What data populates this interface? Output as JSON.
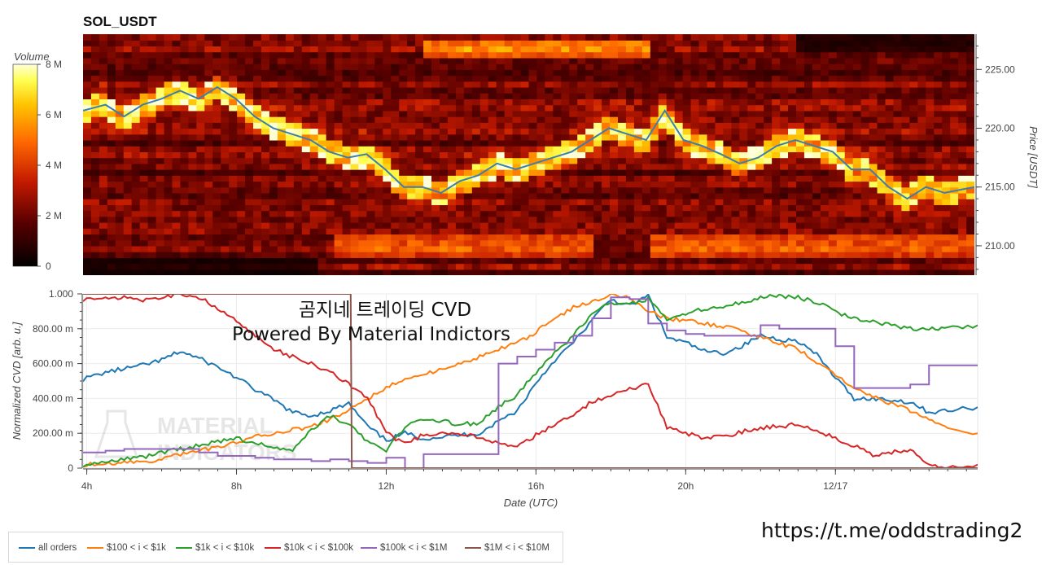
{
  "colors": {
    "all_orders": "#1f77b4",
    "s100_1k": "#ff7f0e",
    "s1k_10k": "#2ca02c",
    "s10k_100k": "#d62728",
    "s100k_1m": "#9467bd",
    "s1m_10m": "#8c564b",
    "price_line": "#3a7fb0"
  },
  "watermark": {
    "line1": "곰지네 트레이딩 CVD",
    "line2": "Powered By Material Indictors",
    "logo_line1": "MATERIAL",
    "logo_line2": "INDICATORS",
    "url": "https://t.me/oddstrading2"
  },
  "chart_data": [
    {
      "type": "heatmap",
      "title": "SOL_USDT",
      "colorbar": {
        "title": "Volume",
        "ticks": [
          "0",
          "2 M",
          "4 M",
          "6 M",
          "8 M"
        ],
        "range": [
          0,
          8000000
        ]
      },
      "ylabel": "Price [USDT]",
      "ylim": [
        207.5,
        228.0
      ],
      "yticks": [
        "210.00",
        "215.00",
        "220.00",
        "225.00"
      ],
      "xlim": [
        3.9,
        27.8
      ],
      "price_series": {
        "x": [
          3.9,
          4.5,
          5.0,
          5.5,
          6.0,
          6.5,
          7.0,
          7.5,
          8.0,
          8.5,
          9.0,
          9.5,
          10.0,
          10.5,
          11.0,
          11.5,
          12.0,
          12.5,
          13.0,
          13.5,
          14.0,
          14.5,
          15.0,
          15.5,
          16.0,
          16.5,
          17.0,
          17.5,
          18.0,
          18.5,
          19.0,
          19.5,
          20.0,
          20.5,
          21.0,
          21.5,
          22.0,
          22.5,
          23.0,
          23.5,
          24.0,
          24.5,
          25.0,
          25.5,
          26.0,
          26.5,
          27.0,
          27.8
        ],
        "y": [
          221.5,
          222.0,
          221.0,
          222.0,
          222.5,
          223.2,
          222.5,
          223.5,
          222.5,
          221.0,
          220.0,
          219.5,
          219.0,
          218.0,
          217.5,
          217.8,
          216.5,
          215.0,
          215.0,
          214.5,
          215.5,
          216.0,
          217.0,
          216.5,
          217.0,
          217.5,
          218.0,
          219.0,
          220.0,
          219.5,
          219.0,
          221.5,
          219.0,
          218.5,
          217.8,
          217.0,
          217.5,
          218.5,
          219.0,
          218.5,
          218.0,
          216.5,
          216.5,
          215.0,
          214.0,
          215.0,
          214.5,
          215.0
        ]
      }
    },
    {
      "type": "line",
      "xlabel": "Date (UTC)",
      "ylabel": "Normalized CVD [arb. u.]",
      "xlim": [
        3.9,
        27.8
      ],
      "ylim": [
        0,
        1.0
      ],
      "yticks": [
        "0",
        "200.00 m",
        "400.00 m",
        "600.00 m",
        "800.00 m",
        "1.000"
      ],
      "x_tick_values": [
        4,
        8,
        12,
        16,
        20,
        24
      ],
      "x_tick_labels": [
        "4h",
        "8h",
        "12h",
        "16h",
        "20h",
        "12/17"
      ],
      "x": [
        3.9,
        4.5,
        5.0,
        5.5,
        6.0,
        6.5,
        7.0,
        7.5,
        8.0,
        8.5,
        9.0,
        9.5,
        10.0,
        10.5,
        11.0,
        11.5,
        12.0,
        12.5,
        13.0,
        13.5,
        14.0,
        14.5,
        15.0,
        15.5,
        16.0,
        16.5,
        17.0,
        17.5,
        18.0,
        18.5,
        19.0,
        19.5,
        20.0,
        20.5,
        21.0,
        21.5,
        22.0,
        22.5,
        23.0,
        23.5,
        24.0,
        24.5,
        25.0,
        25.5,
        26.0,
        26.5,
        27.0,
        27.8
      ],
      "series": [
        {
          "name": "all orders",
          "values": [
            0.51,
            0.55,
            0.57,
            0.59,
            0.62,
            0.67,
            0.63,
            0.58,
            0.52,
            0.45,
            0.39,
            0.32,
            0.3,
            0.33,
            0.37,
            0.24,
            0.16,
            0.2,
            0.17,
            0.18,
            0.19,
            0.2,
            0.27,
            0.33,
            0.49,
            0.62,
            0.72,
            0.85,
            0.97,
            0.93,
            0.99,
            0.75,
            0.72,
            0.67,
            0.66,
            0.7,
            0.76,
            0.74,
            0.73,
            0.65,
            0.52,
            0.4,
            0.4,
            0.39,
            0.38,
            0.32,
            0.33,
            0.35
          ]
        },
        {
          "name": "$100 < i < $1k",
          "values": [
            0.02,
            0.02,
            0.03,
            0.04,
            0.05,
            0.08,
            0.1,
            0.12,
            0.15,
            0.18,
            0.2,
            0.22,
            0.24,
            0.28,
            0.34,
            0.4,
            0.46,
            0.51,
            0.54,
            0.57,
            0.6,
            0.64,
            0.68,
            0.72,
            0.78,
            0.86,
            0.92,
            0.96,
            0.99,
            0.98,
            0.9,
            0.86,
            0.85,
            0.83,
            0.81,
            0.79,
            0.75,
            0.72,
            0.68,
            0.61,
            0.53,
            0.46,
            0.41,
            0.37,
            0.33,
            0.28,
            0.24,
            0.2
          ]
        },
        {
          "name": "$1k < i < $10k",
          "values": [
            0.02,
            0.03,
            0.05,
            0.06,
            0.09,
            0.11,
            0.13,
            0.15,
            0.17,
            0.14,
            0.12,
            0.1,
            0.22,
            0.3,
            0.25,
            0.15,
            0.1,
            0.24,
            0.28,
            0.27,
            0.25,
            0.26,
            0.35,
            0.42,
            0.55,
            0.66,
            0.76,
            0.89,
            0.95,
            0.94,
            0.97,
            0.86,
            0.89,
            0.91,
            0.92,
            0.95,
            0.98,
            0.99,
            0.98,
            0.95,
            0.9,
            0.86,
            0.84,
            0.82,
            0.8,
            0.8,
            0.8,
            0.82
          ]
        },
        {
          "name": "$10k < i < $100k",
          "values": [
            0.97,
            0.98,
            0.98,
            0.96,
            0.98,
            1.0,
            0.98,
            0.92,
            0.84,
            0.76,
            0.68,
            0.64,
            0.6,
            0.55,
            0.48,
            0.41,
            0.2,
            0.14,
            0.19,
            0.2,
            0.19,
            0.18,
            0.14,
            0.12,
            0.19,
            0.25,
            0.31,
            0.38,
            0.42,
            0.45,
            0.48,
            0.23,
            0.2,
            0.17,
            0.18,
            0.21,
            0.23,
            0.24,
            0.25,
            0.22,
            0.17,
            0.13,
            0.07,
            0.09,
            0.1,
            0.03,
            0.0,
            0.02
          ]
        },
        {
          "name": "$100k < i < $1M",
          "values": [
            0.09,
            0.1,
            0.11,
            0.11,
            0.11,
            0.11,
            0.09,
            0.07,
            0.07,
            0.06,
            0.05,
            0.05,
            0.04,
            0.05,
            0.04,
            0.03,
            0.06,
            0.0,
            0.08,
            0.08,
            0.08,
            0.08,
            0.6,
            0.64,
            0.68,
            0.72,
            0.76,
            0.86,
            0.98,
            0.97,
            0.83,
            0.79,
            0.77,
            0.76,
            0.76,
            0.76,
            0.82,
            0.8,
            0.8,
            0.8,
            0.7,
            0.46,
            0.46,
            0.46,
            0.48,
            0.59,
            0.59,
            0.59
          ]
        },
        {
          "name": "$1M < i < $10M",
          "values": [
            1.0,
            1.0,
            1.0,
            1.0,
            1.0,
            1.0,
            1.0,
            1.0,
            1.0,
            1.0,
            1.0,
            1.0,
            1.0,
            1.0,
            1.0,
            0.0,
            0.0,
            0.0,
            0.0,
            0.0,
            0.0,
            0.0,
            0.0,
            0.0,
            0.0,
            0.0,
            0.0,
            0.0,
            0.0,
            0.0,
            0.0,
            0.0,
            0.0,
            0.0,
            0.0,
            0.0,
            0.0,
            0.0,
            0.0,
            0.0,
            0.0,
            0.0,
            0.0,
            0.0,
            0.0,
            0.0,
            0.0,
            0.0
          ]
        }
      ],
      "legend": "bottom-left",
      "grid": true
    }
  ]
}
